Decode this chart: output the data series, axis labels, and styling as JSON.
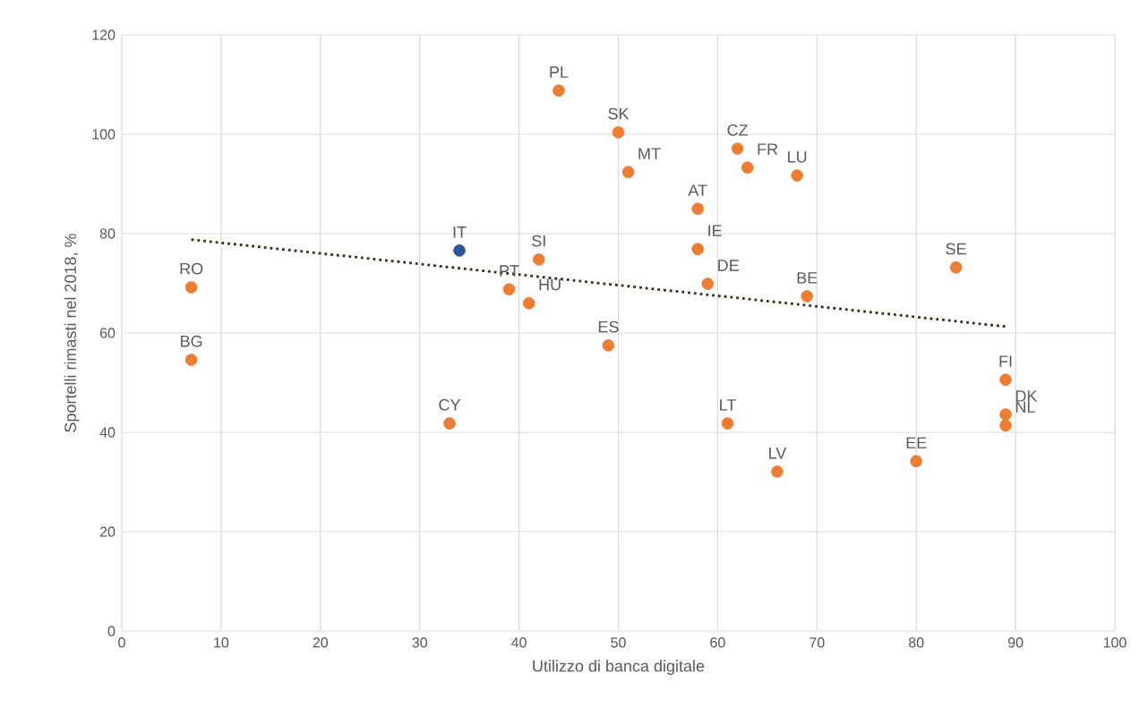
{
  "chart_data": {
    "type": "scatter",
    "xlabel": "Utilizzo di banca digitale",
    "ylabel": "Sportelli rimasti nel 2018, %",
    "xlim": [
      0,
      100
    ],
    "ylim": [
      0,
      120
    ],
    "xticks": [
      0,
      10,
      20,
      30,
      40,
      50,
      60,
      70,
      80,
      90,
      100
    ],
    "yticks": [
      0,
      20,
      40,
      60,
      80,
      100,
      120
    ],
    "grid": true,
    "marker": "circle",
    "series": [
      {
        "x": [
          7,
          7,
          34,
          33,
          39,
          41,
          42,
          44,
          49,
          50,
          51,
          58,
          58,
          59,
          61,
          62,
          63,
          66,
          68,
          69,
          80,
          84,
          89,
          89,
          89
        ],
        "values": [
          69.2,
          54.6,
          76.6,
          41.8,
          68.8,
          66,
          74.8,
          108.8,
          57.5,
          100.4,
          92.4,
          85,
          76.9,
          69.9,
          41.8,
          97.1,
          93.3,
          32.1,
          91.7,
          67.4,
          34.2,
          73.2,
          50.6,
          43.6,
          41.4
        ],
        "colors": [
          "#ed7d31",
          "#ed7d31",
          "#2e5597",
          "#ed7d31",
          "#ed7d31",
          "#ed7d31",
          "#ed7d31",
          "#ed7d31",
          "#ed7d31",
          "#ed7d31",
          "#ed7d31",
          "#ed7d31",
          "#ed7d31",
          "#ed7d31",
          "#ed7d31",
          "#ed7d31",
          "#ed7d31",
          "#ed7d31",
          "#ed7d31",
          "#ed7d31",
          "#ed7d31",
          "#ed7d31",
          "#ed7d31",
          "#ed7d31",
          "#ed7d31"
        ]
      },
      {
        "type": "line",
        "x": [
          7,
          89
        ],
        "values": [
          78.8,
          61.3
        ],
        "color": "#3b2a1a",
        "line_style": "dotted",
        "marker": "none"
      }
    ],
    "annotations": [
      {
        "text": "RO",
        "x": 7,
        "y": 69.2
      },
      {
        "text": "BG",
        "x": 7,
        "y": 54.6
      },
      {
        "text": "IT",
        "x": 34,
        "y": 76.6
      },
      {
        "text": "CY",
        "x": 33,
        "y": 41.8
      },
      {
        "text": "PT",
        "x": 39,
        "y": 68.8
      },
      {
        "text": "HU",
        "x": 41,
        "y": 66
      },
      {
        "text": "SI",
        "x": 42,
        "y": 74.8
      },
      {
        "text": "PL",
        "x": 44,
        "y": 108.8
      },
      {
        "text": "ES",
        "x": 49,
        "y": 57.5
      },
      {
        "text": "SK",
        "x": 50,
        "y": 100.4
      },
      {
        "text": "MT",
        "x": 51,
        "y": 92.4
      },
      {
        "text": "AT",
        "x": 58,
        "y": 85
      },
      {
        "text": "IE",
        "x": 58,
        "y": 76.9
      },
      {
        "text": "DE",
        "x": 59,
        "y": 69.9
      },
      {
        "text": "LT",
        "x": 61,
        "y": 41.8
      },
      {
        "text": "CZ",
        "x": 62,
        "y": 97.1
      },
      {
        "text": "FR",
        "x": 63,
        "y": 93.3
      },
      {
        "text": "LV",
        "x": 66,
        "y": 32.1
      },
      {
        "text": "LU",
        "x": 68,
        "y": 91.7
      },
      {
        "text": "BE",
        "x": 69,
        "y": 67.4
      },
      {
        "text": "EE",
        "x": 80,
        "y": 34.2
      },
      {
        "text": "SE",
        "x": 84,
        "y": 73.2
      },
      {
        "text": "FI",
        "x": 89,
        "y": 50.6
      },
      {
        "text": "DK",
        "x": 89,
        "y": 43.6
      },
      {
        "text": "NL",
        "x": 89,
        "y": 41.4
      }
    ]
  }
}
